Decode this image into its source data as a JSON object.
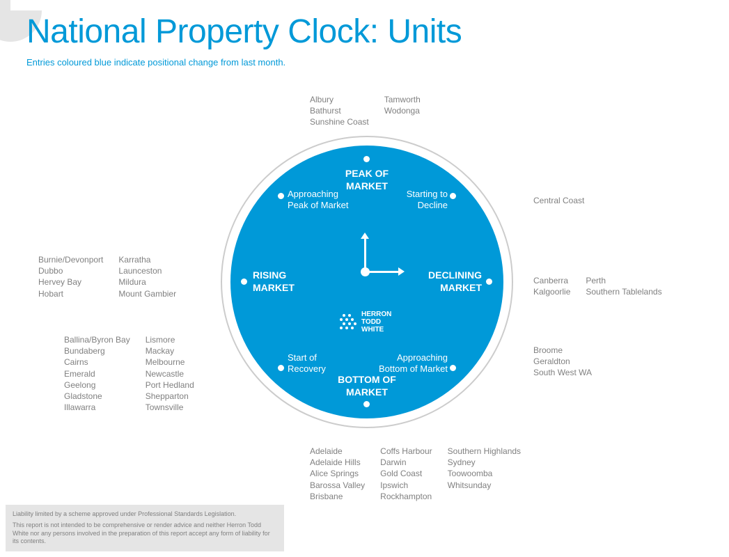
{
  "title": "National Property Clock: Units",
  "subtitle": "Entries coloured blue indicate positional change from last month.",
  "colors": {
    "accent": "#0099d8",
    "ring": "#cccccc",
    "text_grey": "#808080",
    "disclaimer_bg": "#e5e5e5",
    "white": "#ffffff"
  },
  "logo": {
    "line1": "HERRON",
    "line2": "TODD",
    "line3": "WHITE"
  },
  "phases": {
    "peak": "PEAK OF\nMARKET",
    "approaching_peak": "Approaching\nPeak of Market",
    "starting_decline": "Starting to\nDecline",
    "rising": "RISING\nMARKET",
    "declining": "DECLINING\nMARKET",
    "start_recovery": "Start of\nRecovery",
    "approaching_bottom": "Approaching\nBottom of Market",
    "bottom": "BOTTOM OF\nMARKET"
  },
  "cities": {
    "peak": {
      "cols": [
        [
          "Albury",
          "Bathurst",
          "Sunshine Coast"
        ],
        [
          "Tamworth",
          "Wodonga"
        ]
      ]
    },
    "starting_decline": {
      "cols": [
        [
          "Central Coast"
        ]
      ]
    },
    "declining": {
      "cols": [
        [
          "Canberra",
          "Kalgoorlie"
        ],
        [
          "Perth",
          "Southern Tablelands"
        ]
      ]
    },
    "approaching_bottom": {
      "cols": [
        [
          "Broome",
          "Geraldton",
          "South West WA"
        ]
      ]
    },
    "bottom": {
      "cols": [
        [
          "Adelaide",
          "Adelaide Hills",
          "Alice Springs",
          "Barossa Valley",
          "Brisbane"
        ],
        [
          "Coffs Harbour",
          "Darwin",
          "Gold Coast",
          "Ipswich",
          "Rockhampton"
        ],
        [
          "Southern Highlands",
          "Sydney",
          "Toowoomba",
          "Whitsunday"
        ]
      ]
    },
    "start_recovery": {
      "cols": [
        [
          "Ballina/Byron Bay",
          "Bundaberg",
          "Cairns",
          "Emerald",
          "Geelong",
          "Gladstone",
          "Illawarra"
        ],
        [
          "Lismore",
          "Mackay",
          "Melbourne",
          "Newcastle",
          "Port Hedland",
          "Shepparton",
          "Townsville"
        ]
      ]
    },
    "rising": {
      "cols": [
        [
          "Burnie/Devonport",
          "Dubbo",
          "Hervey Bay",
          "Hobart"
        ],
        [
          "Karratha",
          "Launceston",
          "Mildura",
          "Mount Gambier"
        ]
      ]
    }
  },
  "disclaimer": {
    "line1": "Liability limited by a scheme approved under Professional Standards Legislation.",
    "line2": "This report is not intended to be comprehensive or render advice and neither Herron Todd White nor any persons involved in the preparation of this report accept any form of liability for its contents."
  }
}
